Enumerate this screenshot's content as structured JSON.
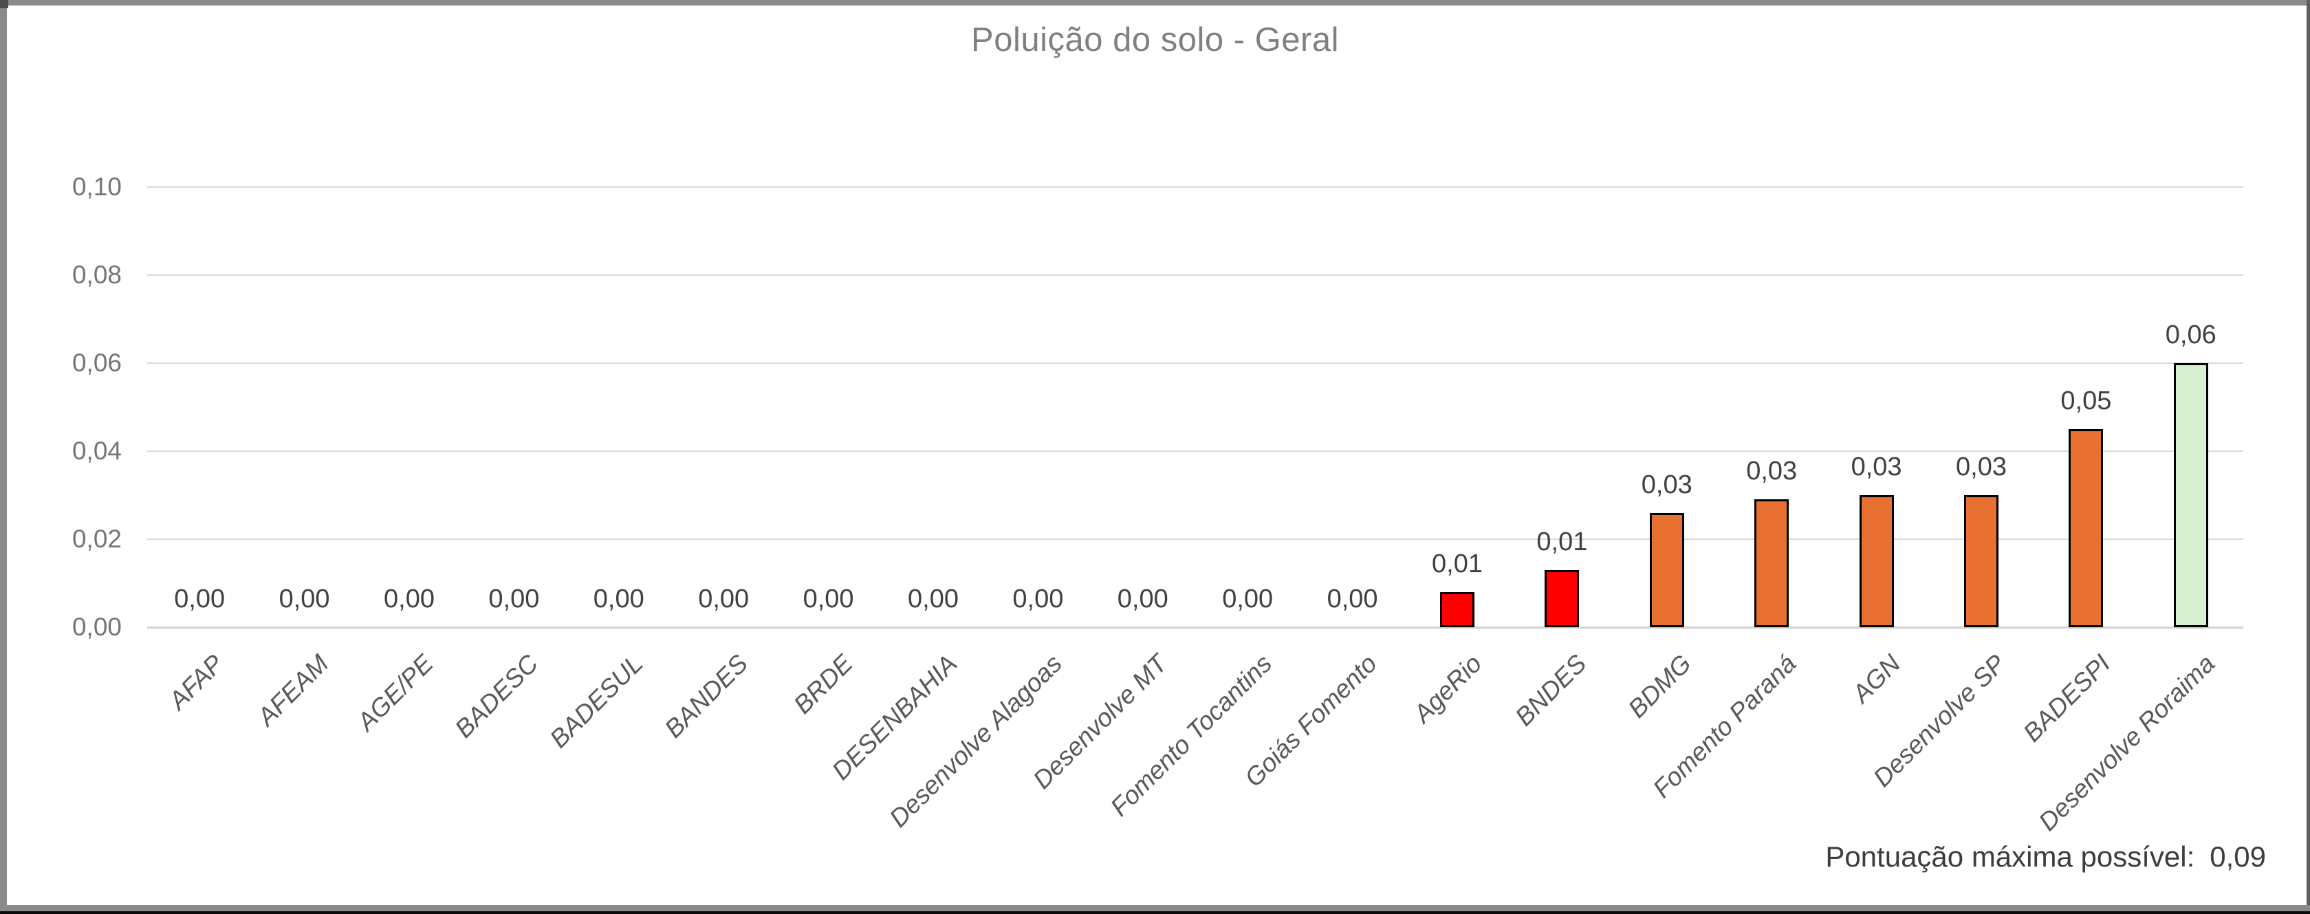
{
  "title": "Poluição do solo - Geral",
  "footer": {
    "label": "Pontuação máxima possível:",
    "value": "0,09"
  },
  "colors": {
    "red": "#FF0000",
    "orange": "#E87132",
    "green": "#D8F0D0",
    "bar_outline": "#000000",
    "gridline": "#DADADA",
    "title_text": "#808080",
    "axis_text": "#757575",
    "category_text": "#595959",
    "data_label_text": "#404040",
    "footer_text": "#3D3D3D",
    "frame": "#8A8A8A"
  },
  "chart_data": {
    "type": "bar",
    "title": "Poluição do solo - Geral",
    "xlabel": "",
    "ylabel": "",
    "ylim": [
      0,
      0.1
    ],
    "ytick_step": 0.02,
    "grid": true,
    "legend": "none",
    "ytick_labels_top_down": [
      "0,10",
      "0,08",
      "0,06",
      "0,04",
      "0,02",
      "0,00"
    ],
    "categories": [
      "AFAP",
      "AFEAM",
      "AGE/PE",
      "BADESC",
      "BADESUL",
      "BANDES",
      "BRDE",
      "DESENBAHIA",
      "Desenvolve Alagoas",
      "Desenvolve MT",
      "Fomento Tocantins",
      "Goiás Fomento",
      "AgeRio",
      "BNDES",
      "BDMG",
      "Fomento Paraná",
      "AGN",
      "Desenvolve SP",
      "BADESPI",
      "Desenvolve Roraima"
    ],
    "values": [
      0,
      0,
      0,
      0,
      0,
      0,
      0,
      0,
      0,
      0,
      0,
      0,
      0.008,
      0.013,
      0.026,
      0.029,
      0.03,
      0.03,
      0.045,
      0.06
    ],
    "data_labels": [
      "0,00",
      "0,00",
      "0,00",
      "0,00",
      "0,00",
      "0,00",
      "0,00",
      "0,00",
      "0,00",
      "0,00",
      "0,00",
      "0,00",
      "0,01",
      "0,01",
      "0,03",
      "0,03",
      "0,03",
      "0,03",
      "0,05",
      "0,06"
    ],
    "bar_colors": [
      "none",
      "none",
      "none",
      "none",
      "none",
      "none",
      "none",
      "none",
      "none",
      "none",
      "none",
      "none",
      "red",
      "red",
      "orange",
      "orange",
      "orange",
      "orange",
      "orange",
      "green"
    ],
    "annotation": "Pontuação máxima possível:  0,09"
  }
}
